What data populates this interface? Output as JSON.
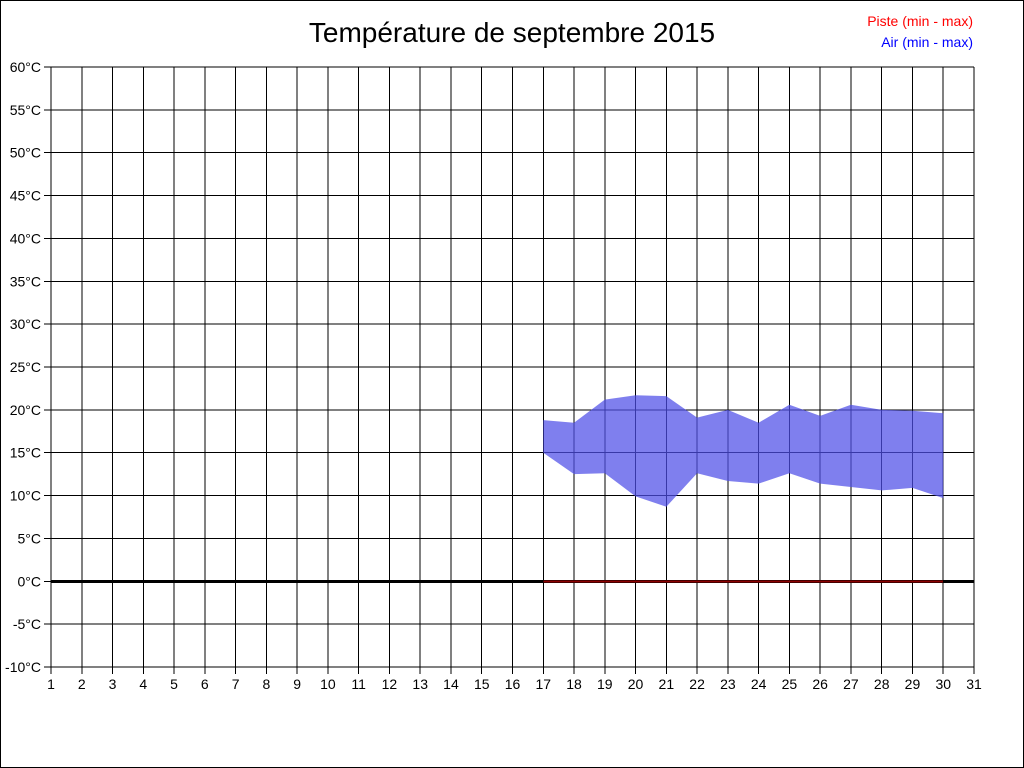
{
  "title": "Température de septembre 2015",
  "legend": [
    {
      "label": "Piste (min - max)",
      "color": "#ff0000"
    },
    {
      "label": "Air (min - max)",
      "color": "#0000ff"
    }
  ],
  "chart_data": {
    "type": "area",
    "title": "Température de septembre 2015",
    "xlabel": "",
    "ylabel": "",
    "xlim": [
      1,
      31
    ],
    "ylim": [
      -10,
      60
    ],
    "x_tick_labels": [
      "1",
      "2",
      "3",
      "4",
      "5",
      "6",
      "7",
      "8",
      "9",
      "10",
      "11",
      "12",
      "13",
      "14",
      "15",
      "16",
      "17",
      "18",
      "19",
      "20",
      "21",
      "22",
      "23",
      "24",
      "25",
      "26",
      "27",
      "28",
      "29",
      "30",
      "31"
    ],
    "y_tick_values": [
      60,
      55,
      50,
      45,
      40,
      35,
      30,
      25,
      20,
      15,
      10,
      5,
      0,
      -5,
      -10
    ],
    "y_tick_unit": "°C",
    "grid": true,
    "grid_color": "#000000",
    "zero_line": {
      "value": 0,
      "color": "#000000",
      "width": 3
    },
    "series": [
      {
        "name": "Air (min - max)",
        "style": "band",
        "fill_color": "rgba(77,77,232,0.72)",
        "days": [
          17,
          18,
          19,
          20,
          21,
          22,
          23,
          24,
          25,
          26,
          27,
          28,
          29,
          30
        ],
        "max": [
          18.8,
          18.5,
          21.2,
          21.7,
          21.6,
          19.1,
          20.0,
          18.5,
          20.6,
          19.3,
          20.6,
          20.0,
          19.9,
          19.6
        ],
        "min": [
          15.0,
          12.5,
          12.6,
          9.9,
          8.7,
          12.6,
          11.7,
          11.4,
          12.6,
          11.4,
          11.0,
          10.6,
          10.9,
          9.7
        ]
      },
      {
        "name": "Piste (min - max)",
        "style": "line",
        "line_color": "#8b0000",
        "days": [
          17,
          18,
          19,
          20,
          21,
          22,
          23,
          24,
          25,
          26,
          27,
          28,
          29,
          30
        ],
        "max": [
          0,
          0,
          0,
          0,
          0,
          0,
          0,
          0,
          0,
          0,
          0,
          0,
          0,
          0
        ],
        "min": [
          0,
          0,
          0,
          0,
          0,
          0,
          0,
          0,
          0,
          0,
          0,
          0,
          0,
          0
        ]
      }
    ]
  }
}
